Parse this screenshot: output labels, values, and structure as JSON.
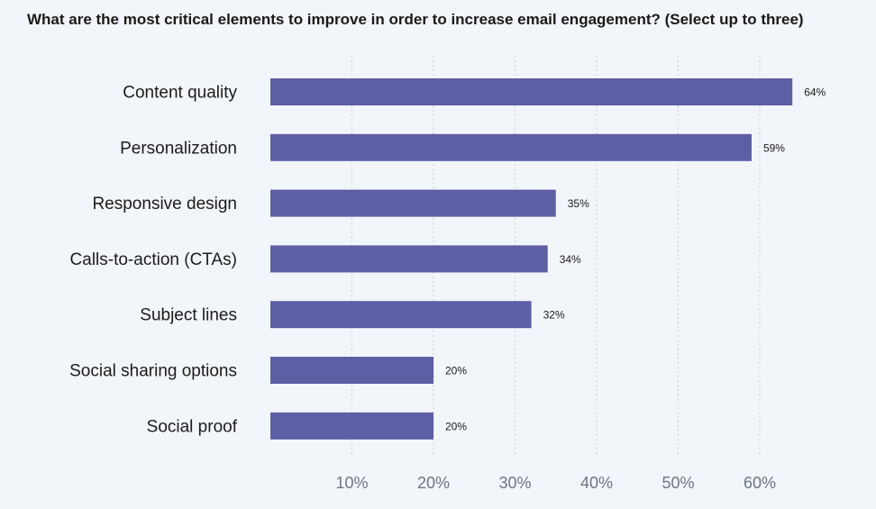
{
  "chart_data": {
    "type": "bar",
    "orientation": "horizontal",
    "title": "What are the most critical elements to improve in order to increase email engagement? (Select up to three)",
    "categories": [
      "Content quality",
      "Personalization",
      "Responsive design",
      "Calls-to-action (CTAs)",
      "Subject lines",
      "Social sharing options",
      "Social proof"
    ],
    "values": [
      64,
      59,
      35,
      34,
      32,
      20,
      20
    ],
    "value_labels": [
      "64%",
      "59%",
      "35%",
      "34%",
      "32%",
      "20%",
      "20%"
    ],
    "xticks": [
      10,
      20,
      30,
      40,
      50,
      60
    ],
    "xtick_labels": [
      "10%",
      "20%",
      "30%",
      "40%",
      "50%",
      "60%"
    ],
    "xlim": [
      0,
      70
    ],
    "grid": "vertical dotted",
    "bar_color": "#5d5ea3"
  }
}
